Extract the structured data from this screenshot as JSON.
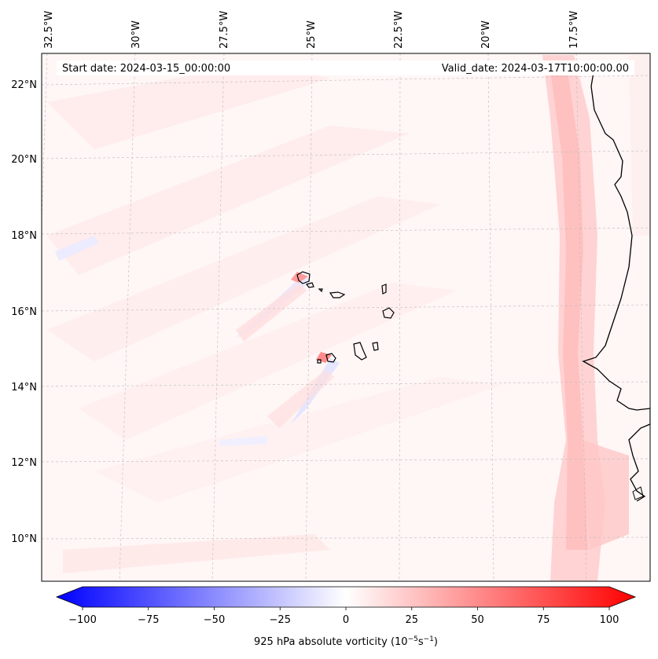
{
  "map": {
    "start_date": "Start date: 2024-03-15_00:00:00",
    "valid_date": "Valid_date: 2024-03-17T10:00:00.00",
    "lon_labels": [
      "32.5°W",
      "30°W",
      "27.5°W",
      "25°W",
      "22.5°W",
      "20°W",
      "17.5°W"
    ],
    "lat_labels": [
      "22°N",
      "20°N",
      "18°N",
      "16°N",
      "14°N",
      "12°N",
      "10°N"
    ]
  },
  "colorbar": {
    "ticks": [
      "−100",
      "−75",
      "−50",
      "−25",
      "0",
      "25",
      "50",
      "75",
      "100"
    ],
    "label": "925 hPa absolute vorticity (10",
    "label_exp1": "−5",
    "label_mid": "s",
    "label_exp2": "−1",
    "label_end": ")"
  },
  "colors": {
    "negative": "#0000ff",
    "positive": "#ff0000",
    "background": "#fff7f7"
  }
}
